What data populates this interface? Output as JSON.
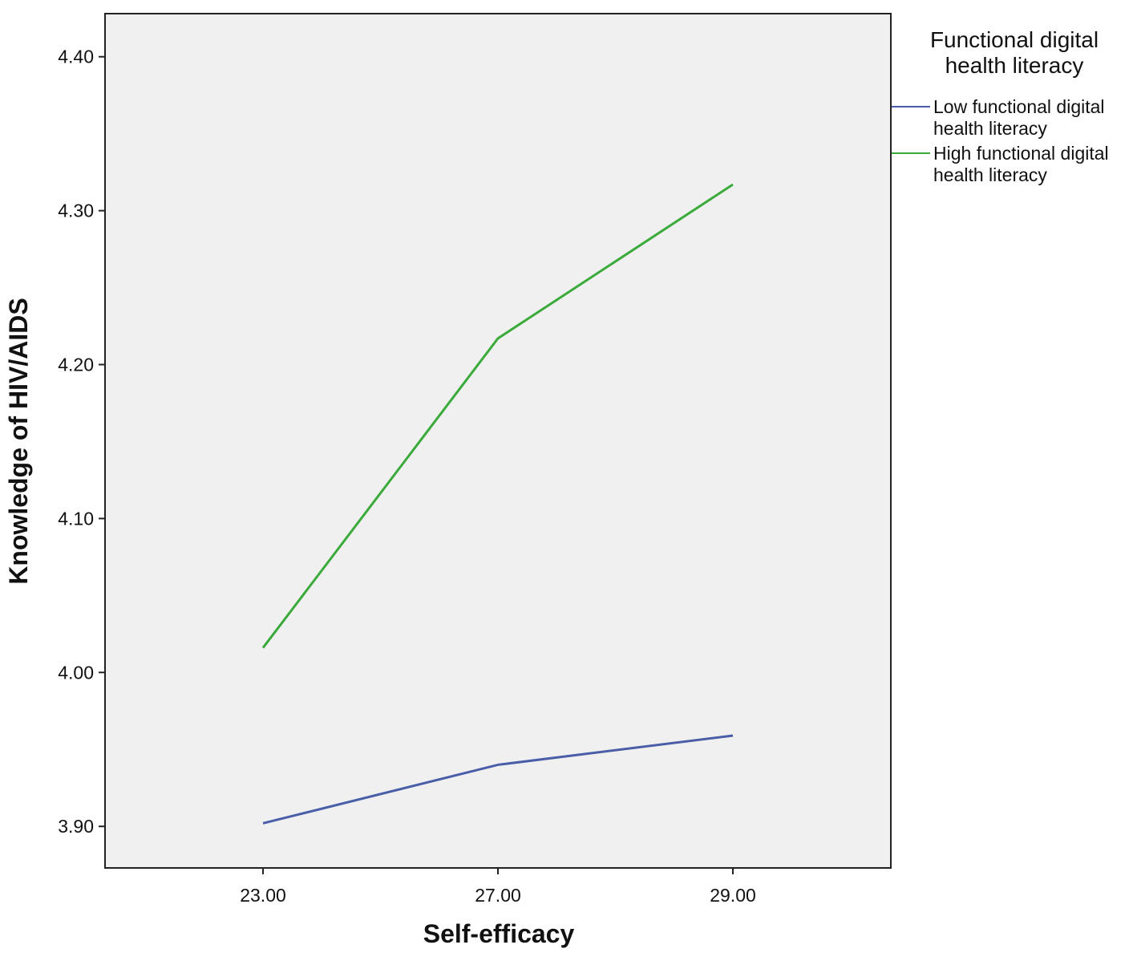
{
  "chart_data": {
    "type": "line",
    "x_label": "Self-efficacy",
    "y_label": "Knowledge of HIV/AIDS",
    "legend_title": "Functional digital health literacy",
    "categories": [
      "23.00",
      "27.00",
      "29.00"
    ],
    "series": [
      {
        "name": "Low functional digital health literacy",
        "color": "#4a5ea8",
        "values": [
          3.902,
          3.94,
          3.959
        ]
      },
      {
        "name": "High functional digital health literacy",
        "color": "#3aaa3a",
        "values": [
          4.016,
          4.217,
          4.317
        ]
      }
    ],
    "ylim": [
      3.873,
      4.428
    ],
    "yticks": [
      {
        "value": 3.9,
        "label": "3.90"
      },
      {
        "value": 4.0,
        "label": "4.00"
      },
      {
        "value": 4.1,
        "label": "4.10"
      },
      {
        "value": 4.2,
        "label": "4.20"
      },
      {
        "value": 4.3,
        "label": "4.30"
      },
      {
        "value": 4.4,
        "label": "4.40"
      }
    ],
    "legend_position": "right"
  }
}
